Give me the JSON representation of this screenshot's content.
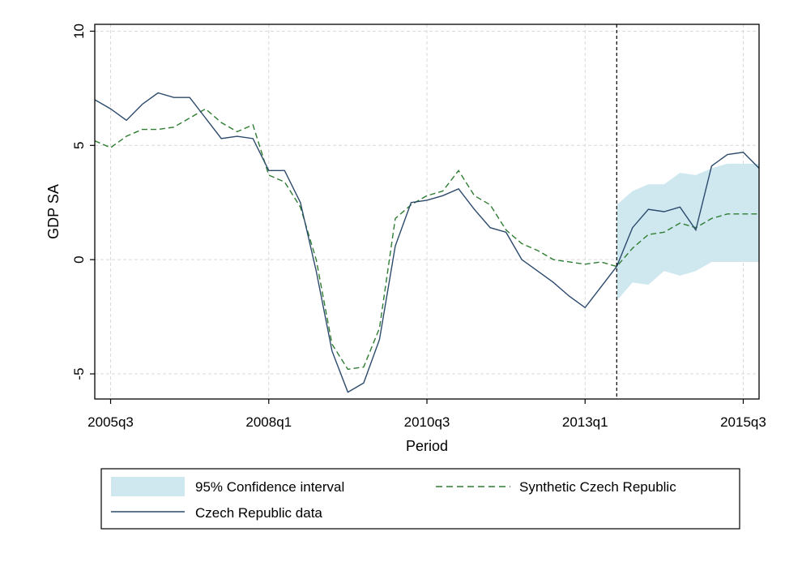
{
  "chart_data": {
    "type": "line",
    "title": "",
    "xlabel": "Period",
    "ylabel": "GDP SA",
    "x_ticks": [
      "2005q3",
      "2008q1",
      "2010q3",
      "2013q1",
      "2015q3"
    ],
    "y_ticks": [
      -5,
      0,
      5,
      10
    ],
    "xlim": [
      "2005q2",
      "2015q4"
    ],
    "ylim": [
      -6.1,
      10.3
    ],
    "grid": true,
    "vertical_line": "2013q3",
    "legend_position": "bottom",
    "colors": {
      "ci_fill": "#cfe8f0",
      "synthetic": "#2e7d32",
      "actual": "#2c4a6b",
      "grid": "#d9d9d9",
      "vline": "#000000"
    },
    "x": [
      "2005q2",
      "2005q3",
      "2005q4",
      "2006q1",
      "2006q2",
      "2006q3",
      "2006q4",
      "2007q1",
      "2007q2",
      "2007q3",
      "2007q4",
      "2008q1",
      "2008q2",
      "2008q3",
      "2008q4",
      "2009q1",
      "2009q2",
      "2009q3",
      "2009q4",
      "2010q1",
      "2010q2",
      "2010q3",
      "2010q4",
      "2011q1",
      "2011q2",
      "2011q3",
      "2011q4",
      "2012q1",
      "2012q2",
      "2012q3",
      "2012q4",
      "2013q1",
      "2013q2",
      "2013q3",
      "2013q4",
      "2014q1",
      "2014q2",
      "2014q3",
      "2014q4",
      "2015q1",
      "2015q2",
      "2015q3",
      "2015q4"
    ],
    "series": [
      {
        "name": "Czech Republic data",
        "values": [
          7.0,
          6.6,
          6.1,
          6.8,
          7.3,
          7.1,
          7.1,
          6.2,
          5.3,
          5.4,
          5.3,
          3.9,
          3.9,
          2.5,
          -0.5,
          -4.0,
          -5.8,
          -5.4,
          -3.5,
          0.6,
          2.5,
          2.6,
          2.8,
          3.1,
          2.2,
          1.4,
          1.2,
          0.0,
          -0.5,
          -1.0,
          -1.6,
          -2.1,
          -1.2,
          -0.3,
          1.4,
          2.2,
          2.1,
          2.3,
          1.3,
          4.1,
          4.6,
          4.7,
          4.0
        ]
      },
      {
        "name": "Synthetic Czech Republic",
        "values": [
          5.2,
          4.9,
          5.4,
          5.7,
          5.7,
          5.8,
          6.2,
          6.6,
          6.0,
          5.6,
          5.9,
          3.7,
          3.4,
          2.3,
          0.0,
          -3.7,
          -4.8,
          -4.7,
          -3.0,
          1.8,
          2.4,
          2.8,
          3.0,
          3.9,
          2.8,
          2.4,
          1.3,
          0.7,
          0.4,
          0.0,
          -0.1,
          -0.2,
          -0.1,
          -0.3,
          0.5,
          1.1,
          1.2,
          1.6,
          1.4,
          1.8,
          2.0,
          2.0,
          2.0
        ]
      }
    ],
    "confidence_interval": {
      "name": "95% Confidence interval",
      "x": [
        "2013q3",
        "2013q4",
        "2014q1",
        "2014q2",
        "2014q3",
        "2014q4",
        "2015q1",
        "2015q2",
        "2015q3",
        "2015q4"
      ],
      "lower": [
        -1.8,
        -1.0,
        -1.1,
        -0.5,
        -0.7,
        -0.5,
        -0.1,
        -0.1,
        -0.1,
        -0.1
      ],
      "upper": [
        2.4,
        3.0,
        3.3,
        3.3,
        3.8,
        3.7,
        4.0,
        4.2,
        4.2,
        4.2
      ]
    }
  }
}
